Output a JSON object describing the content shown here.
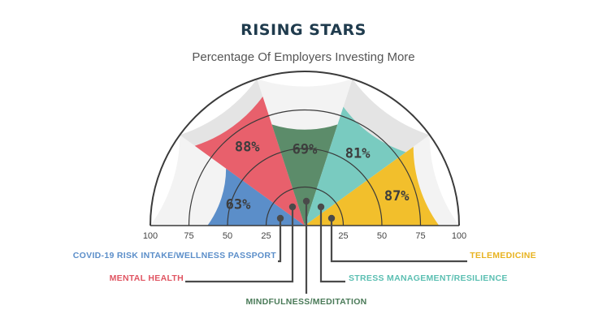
{
  "chart_data": {
    "type": "radial-bar",
    "title": "RISING STARS",
    "subtitle": "Percentage Of Employers Investing More",
    "axis_ticks_left": [
      "100",
      "75",
      "50",
      "25"
    ],
    "axis_ticks_right": [
      "25",
      "50",
      "75",
      "100"
    ],
    "range": [
      0,
      100
    ],
    "series": [
      {
        "name": "COVID-19 RISK INTAKE/WELLNESS PASSPORT",
        "value": 63,
        "label": "63%",
        "color": "#5b8ec9",
        "label_color": "#5b8ec9"
      },
      {
        "name": "MENTAL HEALTH",
        "value": 88,
        "label": "88%",
        "color": "#e8606c",
        "label_color": "#e05562"
      },
      {
        "name": "MINDFULNESS/MEDITATION",
        "value": 69,
        "label": "69%",
        "color": "#5c8c6a",
        "label_color": "#4a7a58"
      },
      {
        "name": "STRESS MANAGEMENT/RESILIENCE",
        "value": 81,
        "label": "81%",
        "color": "#79cbc0",
        "label_color": "#5bbfb2"
      },
      {
        "name": "TELEMEDICINE",
        "value": 87,
        "label": "87%",
        "color": "#f2bf2c",
        "label_color": "#e8b320"
      }
    ]
  }
}
